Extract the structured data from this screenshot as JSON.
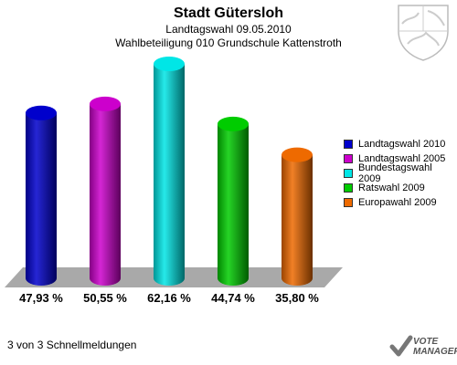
{
  "header": {
    "title": "Stadt Gütersloh",
    "subtitle": "Landtagswahl 09.05.2010",
    "subtitle2": "Wahlbeteiligung 010 Grundschule Kattenstroth"
  },
  "chart_data": {
    "type": "bar",
    "categories": [
      "Landtagswahl 2010",
      "Landtagswahl 2005",
      "Bundestagswahl 2009",
      "Ratswahl 2009",
      "Europawahl 2009"
    ],
    "values": [
      47.93,
      50.55,
      62.16,
      44.74,
      35.8
    ],
    "labels": [
      "47,93 %",
      "50,55 %",
      "62,16 %",
      "44,74 %",
      "35,80 %"
    ],
    "colors": [
      "#0000cc",
      "#cc00cc",
      "#00e6e6",
      "#00cc00",
      "#ee6a00"
    ],
    "ylim": [
      0,
      62.16
    ],
    "legend_position": "right"
  },
  "legend": {
    "items": [
      {
        "label": "Landtagswahl 2010",
        "color": "#0000cc"
      },
      {
        "label": "Landtagswahl 2005",
        "color": "#cc00cc"
      },
      {
        "label": "Bundestagswahl 2009",
        "color": "#00e6e6"
      },
      {
        "label": "Ratswahl 2009",
        "color": "#00cc00"
      },
      {
        "label": "Europawahl 2009",
        "color": "#ee6a00"
      }
    ]
  },
  "footer": {
    "text": "3 von 3 Schnellmeldungen"
  },
  "branding": {
    "logo_line1": "VOTE",
    "logo_line2": "MANAGER",
    "logo_icon": "checkmark-icon",
    "crest_icon": "coat-of-arms-icon"
  }
}
